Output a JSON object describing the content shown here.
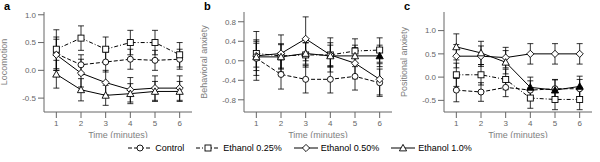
{
  "chart_data": [
    {
      "type": "line",
      "title": "a",
      "xlabel": "Time (minutes)",
      "ylabel": "Locomotion",
      "x": [
        1,
        2,
        3,
        4,
        5,
        6
      ],
      "xlim": [
        0.5,
        6.5
      ],
      "xticks": [
        1,
        2,
        3,
        4,
        5,
        6
      ],
      "ylim": [
        -0.75,
        1.05
      ],
      "yticks": [
        -0.5,
        {
          "value": 0,
          "label": "0.0"
        },
        0.5,
        {
          "value": 1,
          "label": "1.0"
        }
      ],
      "series": [
        {
          "name": "Control",
          "color": "#000000",
          "line_style": "dashed",
          "marker": "circle",
          "values": [
            0.3,
            0.1,
            0.15,
            0.2,
            0.18,
            0.2
          ],
          "errors": [
            0.3,
            0.18,
            0.18,
            0.18,
            0.18,
            0.18
          ],
          "filled": []
        },
        {
          "name": "Ethanol 0.25%",
          "color": "#000000",
          "line_style": "dashdot",
          "marker": "square",
          "values": [
            0.38,
            0.58,
            0.38,
            0.5,
            0.5,
            0.28
          ],
          "errors": [
            0.35,
            0.22,
            0.22,
            0.22,
            0.22,
            0.22
          ],
          "filled": []
        },
        {
          "name": "Ethanol 0.50%",
          "color": "#000000",
          "line_style": "solid",
          "marker": "diamond",
          "values": [
            0.28,
            -0.05,
            -0.22,
            -0.35,
            -0.32,
            -0.32
          ],
          "errors": [
            0.28,
            0.25,
            0.22,
            0.22,
            0.22,
            0.22
          ],
          "filled": []
        },
        {
          "name": "Ethanol 1.0%",
          "color": "#000000",
          "line_style": "solid",
          "marker": "triangle",
          "values": [
            -0.07,
            -0.35,
            -0.45,
            -0.42,
            -0.38,
            -0.38
          ],
          "errors": [
            0.25,
            0.2,
            0.18,
            0.18,
            0.18,
            0.18
          ],
          "filled": []
        }
      ]
    },
    {
      "type": "line",
      "title": "b",
      "xlabel": "Time (minutes)",
      "ylabel": "Behavioral anxiety",
      "legend": "bottom",
      "x": [
        1,
        2,
        3,
        4,
        5,
        6
      ],
      "xlim": [
        0.5,
        6.5
      ],
      "xticks": [
        1,
        2,
        3,
        4,
        5,
        6
      ],
      "ylim": [
        -1.05,
        1.0
      ],
      "yticks": [
        -0.8,
        -0.4,
        {
          "value": 0,
          "label": "0.0"
        },
        0.4,
        0.8
      ],
      "series": [
        {
          "name": "Control",
          "color": "#000000",
          "line_style": "dashed",
          "marker": "circle",
          "values": [
            0.05,
            -0.28,
            -0.38,
            -0.38,
            -0.32,
            -0.45
          ],
          "errors": [
            0.35,
            0.3,
            0.28,
            0.28,
            0.28,
            0.28
          ],
          "filled": []
        },
        {
          "name": "Ethanol 0.25%",
          "color": "#000000",
          "line_style": "dashdot",
          "marker": "square",
          "values": [
            0.15,
            0.1,
            0.12,
            0.12,
            0.2,
            0.22
          ],
          "errors": [
            0.28,
            0.25,
            0.25,
            0.25,
            0.25,
            0.25
          ],
          "filled": []
        },
        {
          "name": "Ethanol 0.50%",
          "color": "#000000",
          "line_style": "solid",
          "marker": "diamond",
          "values": [
            0.1,
            0.15,
            0.45,
            0.12,
            -0.05,
            -0.38
          ],
          "errors": [
            0.5,
            0.38,
            0.45,
            0.35,
            0.32,
            0.32
          ],
          "filled": []
        },
        {
          "name": "Ethanol 1.0%",
          "color": "#000000",
          "line_style": "solid",
          "marker": "triangle",
          "values": [
            0.08,
            0.08,
            0.15,
            0.1,
            0.1,
            0.1
          ],
          "errors": [
            0.28,
            0.25,
            0.22,
            0.22,
            0.22,
            0.22
          ],
          "filled": [
            6
          ]
        }
      ]
    },
    {
      "type": "line",
      "title": "c",
      "xlabel": "Time (minutes)",
      "ylabel": "Positional anxiety",
      "x": [
        1,
        2,
        3,
        4,
        5,
        6
      ],
      "xlim": [
        0.5,
        6.5
      ],
      "xticks": [
        1,
        2,
        3,
        4,
        5,
        6
      ],
      "ylim": [
        -0.75,
        1.4
      ],
      "yticks": [
        -0.5,
        {
          "value": 0,
          "label": "0.0"
        },
        0.5,
        {
          "value": 1,
          "label": "1.0"
        }
      ],
      "series": [
        {
          "name": "Control",
          "color": "#000000",
          "line_style": "dashed",
          "marker": "circle",
          "values": [
            -0.28,
            -0.32,
            -0.22,
            -0.28,
            -0.25,
            -0.25
          ],
          "errors": [
            0.25,
            0.2,
            0.2,
            0.2,
            0.2,
            0.2
          ],
          "filled": []
        },
        {
          "name": "Ethanol 0.25%",
          "color": "#000000",
          "line_style": "dashdot",
          "marker": "square",
          "values": [
            0.05,
            0.05,
            -0.05,
            -0.45,
            -0.48,
            -0.48
          ],
          "errors": [
            0.25,
            0.22,
            0.22,
            0.22,
            0.22,
            0.22
          ],
          "filled": []
        },
        {
          "name": "Ethanol 0.50%",
          "color": "#000000",
          "line_style": "solid",
          "marker": "diamond",
          "values": [
            0.45,
            0.45,
            0.42,
            0.5,
            0.5,
            0.5
          ],
          "errors": [
            0.25,
            0.22,
            0.22,
            0.22,
            0.22,
            0.22
          ],
          "filled": []
        },
        {
          "name": "Ethanol 1.0%",
          "color": "#000000",
          "line_style": "solid",
          "marker": "triangle",
          "values": [
            0.65,
            0.52,
            0.32,
            -0.22,
            -0.28,
            -0.2
          ],
          "errors": [
            0.28,
            0.25,
            0.25,
            0.22,
            0.22,
            0.22
          ],
          "filled": [
            4,
            5,
            6
          ]
        }
      ]
    }
  ]
}
